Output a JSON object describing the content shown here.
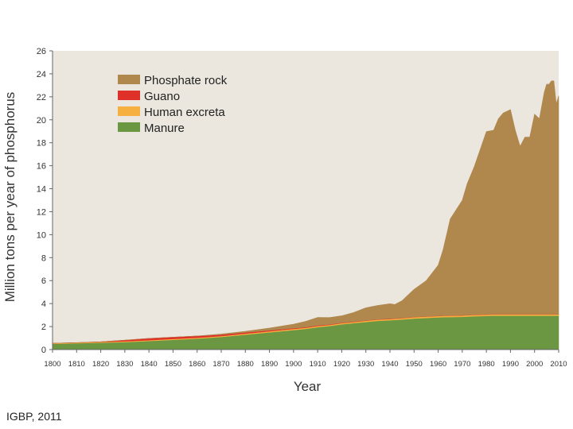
{
  "source_note": "IGBP, 2011",
  "chart_data": {
    "type": "area",
    "stacked": true,
    "title": "",
    "xlabel": "Year",
    "ylabel": "Million tons per year of phosphorus",
    "xlim": [
      1800,
      2010
    ],
    "ylim": [
      0,
      26
    ],
    "xticks": [
      1800,
      1810,
      1820,
      1830,
      1840,
      1850,
      1860,
      1870,
      1880,
      1890,
      1900,
      1910,
      1920,
      1930,
      1940,
      1950,
      1960,
      1970,
      1980,
      1990,
      2000,
      2010
    ],
    "yticks": [
      0,
      2,
      4,
      6,
      8,
      10,
      12,
      14,
      16,
      18,
      20,
      22,
      24,
      26
    ],
    "grid": false,
    "legend_position": "top-left",
    "plot_background": "#ebe7df",
    "x": [
      1800,
      1810,
      1820,
      1830,
      1840,
      1850,
      1860,
      1870,
      1880,
      1890,
      1900,
      1905,
      1910,
      1915,
      1920,
      1925,
      1930,
      1935,
      1940,
      1942,
      1945,
      1950,
      1955,
      1960,
      1962,
      1965,
      1970,
      1972,
      1975,
      1978,
      1980,
      1983,
      1985,
      1987,
      1990,
      1992,
      1994,
      1996,
      1998,
      2000,
      2002,
      2004,
      2005,
      2006,
      2007,
      2008,
      2009,
      2010
    ],
    "series": [
      {
        "name": "Manure",
        "color": "#6b9642",
        "values": [
          0.5,
          0.55,
          0.6,
          0.65,
          0.75,
          0.85,
          0.95,
          1.1,
          1.3,
          1.5,
          1.7,
          1.8,
          1.95,
          2.05,
          2.2,
          2.3,
          2.4,
          2.5,
          2.55,
          2.58,
          2.62,
          2.7,
          2.75,
          2.8,
          2.82,
          2.83,
          2.85,
          2.87,
          2.9,
          2.92,
          2.93,
          2.95,
          2.95,
          2.95,
          2.95,
          2.95,
          2.95,
          2.95,
          2.95,
          2.95,
          2.95,
          2.95,
          2.95,
          2.95,
          2.95,
          2.95,
          2.95,
          2.95
        ]
      },
      {
        "name": "Human excreta",
        "color": "#f5b040",
        "values": [
          0.05,
          0.05,
          0.06,
          0.07,
          0.07,
          0.08,
          0.08,
          0.08,
          0.09,
          0.09,
          0.1,
          0.1,
          0.1,
          0.1,
          0.1,
          0.1,
          0.11,
          0.11,
          0.11,
          0.11,
          0.11,
          0.12,
          0.12,
          0.12,
          0.12,
          0.12,
          0.12,
          0.12,
          0.12,
          0.12,
          0.12,
          0.12,
          0.12,
          0.12,
          0.12,
          0.12,
          0.12,
          0.12,
          0.12,
          0.12,
          0.12,
          0.12,
          0.12,
          0.12,
          0.12,
          0.12,
          0.12,
          0.12
        ]
      },
      {
        "name": "Guano",
        "color": "#e0302a",
        "values": [
          0.0,
          0.0,
          0.02,
          0.1,
          0.15,
          0.15,
          0.15,
          0.12,
          0.1,
          0.08,
          0.06,
          0.05,
          0.05,
          0.04,
          0.04,
          0.03,
          0.03,
          0.03,
          0.03,
          0.03,
          0.02,
          0.02,
          0.02,
          0.02,
          0.02,
          0.02,
          0.02,
          0.02,
          0.02,
          0.02,
          0.02,
          0.02,
          0.02,
          0.02,
          0.02,
          0.02,
          0.02,
          0.02,
          0.02,
          0.02,
          0.02,
          0.02,
          0.02,
          0.02,
          0.02,
          0.02,
          0.02,
          0.02
        ]
      },
      {
        "name": "Phosphate rock",
        "color": "#b0884e",
        "values": [
          0.0,
          0.0,
          0.0,
          0.0,
          0.0,
          0.0,
          0.0,
          0.05,
          0.1,
          0.2,
          0.35,
          0.5,
          0.7,
          0.6,
          0.6,
          0.8,
          1.1,
          1.2,
          1.3,
          1.2,
          1.5,
          2.4,
          3.1,
          4.4,
          5.7,
          8.4,
          10.0,
          11.4,
          12.9,
          14.7,
          15.9,
          16.0,
          17.0,
          17.5,
          17.8,
          16.0,
          14.6,
          15.4,
          15.4,
          17.4,
          17.0,
          19.3,
          20.0,
          20.0,
          20.3,
          20.3,
          18.3,
          19.0
        ]
      }
    ]
  }
}
